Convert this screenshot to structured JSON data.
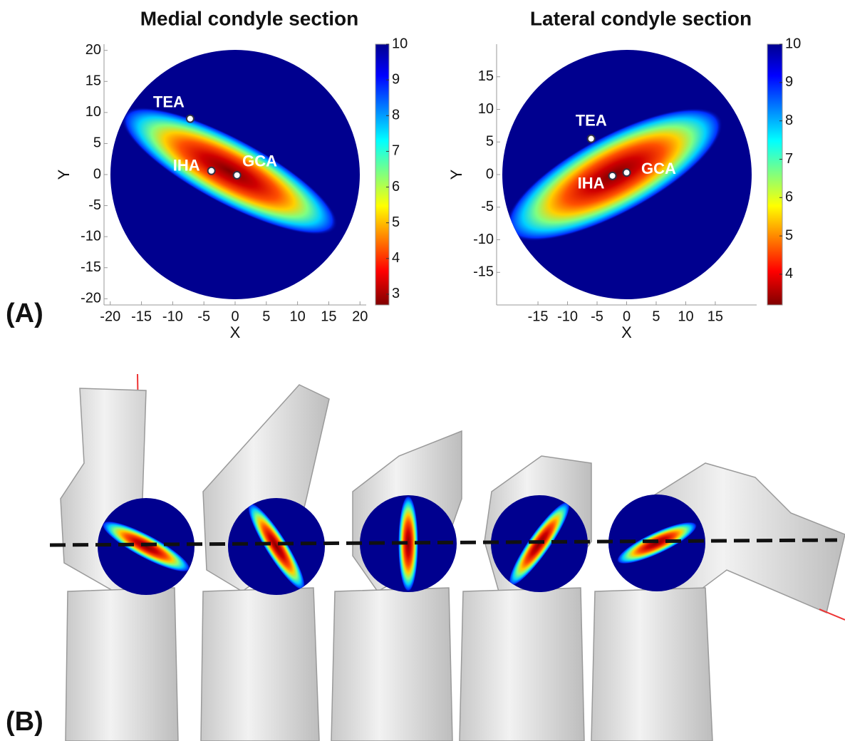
{
  "panels": [
    {
      "label": "(A)"
    },
    {
      "label": "(B)"
    }
  ],
  "chart_data": [
    {
      "type": "heatmap",
      "title": "Medial condyle section",
      "xlabel": "X",
      "ylabel": "Y",
      "xlim": [
        -21,
        21
      ],
      "ylim": [
        -21,
        21
      ],
      "xticks": [
        -20,
        -15,
        -10,
        -5,
        0,
        5,
        10,
        15,
        20
      ],
      "yticks": [
        -20,
        -15,
        -10,
        -5,
        0,
        5,
        10,
        15,
        20
      ],
      "colorbar": {
        "lim": [
          2.7,
          10
        ],
        "ticks": [
          3,
          4,
          5,
          6,
          7,
          8,
          9,
          10
        ]
      },
      "points": [
        {
          "name": "TEA",
          "x": -7.2,
          "y": 9.0
        },
        {
          "name": "IHA",
          "x": -3.8,
          "y": 0.6
        },
        {
          "name": "GCA",
          "x": 0.3,
          "y": -0.1
        }
      ]
    },
    {
      "type": "heatmap",
      "title": "Lateral condyle section",
      "xlabel": "X",
      "ylabel": "Y",
      "xlim": [
        -22,
        22
      ],
      "ylim": [
        -20,
        20
      ],
      "xticks": [
        -15,
        -10,
        -5,
        0,
        5,
        10,
        15
      ],
      "yticks": [
        -15,
        -10,
        -5,
        0,
        5,
        10,
        15
      ],
      "colorbar": {
        "lim": [
          3.2,
          10
        ],
        "ticks": [
          4,
          5,
          6,
          7,
          8,
          9,
          10
        ]
      },
      "points": [
        {
          "name": "TEA",
          "x": -6.0,
          "y": 5.5
        },
        {
          "name": "IHA",
          "x": -2.4,
          "y": -0.2
        },
        {
          "name": "GCA",
          "x": 0,
          "y": 0.3
        }
      ]
    }
  ]
}
